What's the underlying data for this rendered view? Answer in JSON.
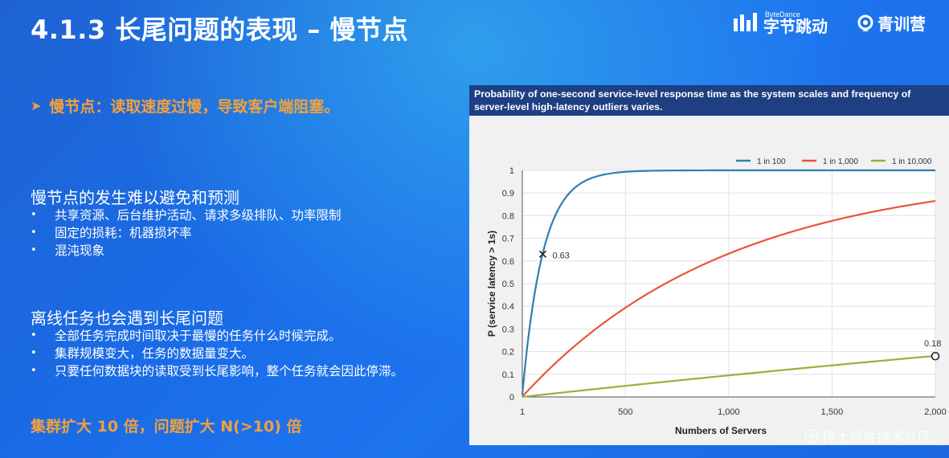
{
  "slide": {
    "title": "4.1.3 长尾问题的表现 – 慢节点",
    "brand": {
      "bytedance_small": "ByteDance",
      "bytedance_name": "字节跳动",
      "qingxun_name": "青训营"
    },
    "lead": "慢节点：读取速度过慢，导致客户端阻塞。",
    "section1": {
      "heading": "慢节点的发生难以避免和预测",
      "bullets": [
        "共享资源、后台维护活动、请求多级排队、功率限制",
        "固定的损耗：机器损坏率",
        "混沌现象"
      ]
    },
    "section2": {
      "heading": "离线任务也会遇到长尾问题",
      "bullets": [
        "全部任务完成时间取决于最慢的任务什么时候完成。",
        "集群规模变大，任务的数据量变大。",
        "只要任何数据块的读取受到长尾影响，整个任务就会因此停滞。"
      ]
    },
    "footer": "集群扩大 10 倍，问题扩大 N(>10) 倍",
    "bullet_glyph": "•",
    "watermark_corner": "稀土掘金技术社区"
  },
  "chart_data": {
    "type": "line",
    "title": "Probability of one-second service-level response time as the system scales and frequency of server-level high-latency outliers varies.",
    "xlabel": "Numbers of Servers",
    "ylabel": "P (service latency > 1s)",
    "xlim": [
      1,
      2000
    ],
    "ylim": [
      0,
      1
    ],
    "x_ticks": [
      1,
      500,
      1000,
      1500,
      2000
    ],
    "x_tick_labels": [
      "1",
      "500",
      "1,000",
      "1,500",
      "2,000"
    ],
    "y_ticks": [
      0,
      0.1,
      0.2,
      0.3,
      0.4,
      0.5,
      0.6,
      0.7,
      0.8,
      0.9,
      1
    ],
    "y_tick_labels": [
      "0",
      "0.1",
      "0.2",
      "0.3",
      "0.4",
      "0.5",
      "0.6",
      "0.7",
      "0.8",
      "0.9",
      "1"
    ],
    "grid": true,
    "legend_position": "top-right",
    "series": [
      {
        "name": "1 in 100",
        "color": "#2f7fb0",
        "p": 0.01
      },
      {
        "name": "1 in 1,000",
        "color": "#e8553a",
        "p": 0.001
      },
      {
        "name": "1 in 10,000",
        "color": "#9bb03b",
        "p": 0.0001
      }
    ],
    "annotations": [
      {
        "x": 100,
        "y": 0.63,
        "label": "0.63",
        "marker": "x"
      },
      {
        "x": 2000,
        "y": 0.18,
        "label": "0.18",
        "marker": "circle"
      }
    ]
  }
}
